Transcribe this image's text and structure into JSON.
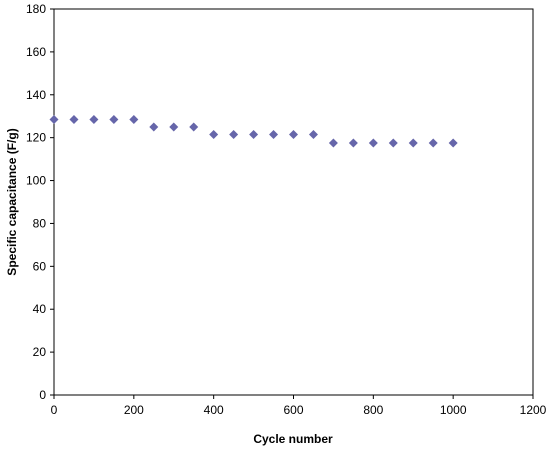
{
  "chart_data": {
    "type": "scatter",
    "title": "",
    "xlabel": "Cycle number",
    "ylabel": "Specific capacitance (F/g)",
    "xlim": [
      0,
      1200
    ],
    "ylim": [
      0,
      180
    ],
    "x_ticks": [
      0,
      200,
      400,
      600,
      800,
      1000,
      1200
    ],
    "y_ticks": [
      0,
      20,
      40,
      60,
      80,
      100,
      120,
      140,
      160,
      180
    ],
    "grid": false,
    "legend": "none",
    "marker": "diamond",
    "colors": {
      "marker": "#6666aa",
      "axis": "#000000"
    },
    "series": [
      {
        "x": [
          0,
          50,
          100,
          150,
          200,
          250,
          300,
          350,
          400,
          450,
          500,
          550,
          600,
          650,
          700,
          750,
          800,
          850,
          900,
          950,
          1000
        ],
        "y": [
          128.5,
          128.5,
          128.5,
          128.5,
          128.5,
          125,
          125,
          125,
          121.5,
          121.5,
          121.5,
          121.5,
          121.5,
          121.5,
          117.5,
          117.5,
          117.5,
          117.5,
          117.5,
          117.5,
          117.5
        ]
      }
    ]
  }
}
